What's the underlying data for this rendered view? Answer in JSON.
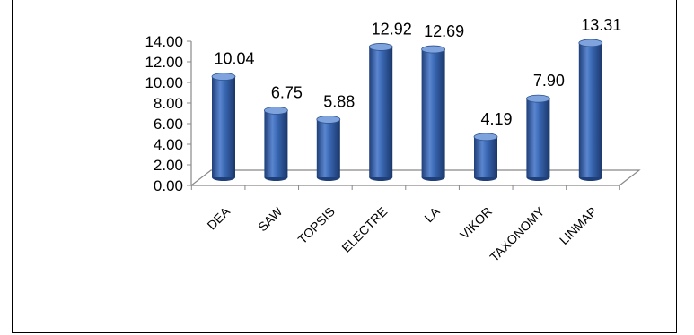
{
  "chart_data": {
    "type": "bar",
    "style": "3d-cylinder",
    "categories": [
      "DEA",
      "SAW",
      "TOPSIS",
      "ELECTRE",
      "LA",
      "VIKOR",
      "TAXONOMY",
      "LINMAP"
    ],
    "values": [
      10.04,
      6.75,
      5.88,
      12.92,
      12.69,
      4.19,
      7.9,
      13.31
    ],
    "data_labels": [
      "10.04",
      "6.75",
      "5.88",
      "12.92",
      "12.69",
      "4.19",
      "7.90",
      "13.31"
    ],
    "y_ticks": [
      "0.00",
      "2.00",
      "4.00",
      "6.00",
      "8.00",
      "10.00",
      "12.00",
      "14.00"
    ],
    "ylim": [
      0,
      14
    ],
    "grid": false,
    "legend": "none",
    "bar_color": "#3a68b4",
    "bar_color_dark": "#1f3f78",
    "bar_color_light": "#7fa3dd"
  }
}
